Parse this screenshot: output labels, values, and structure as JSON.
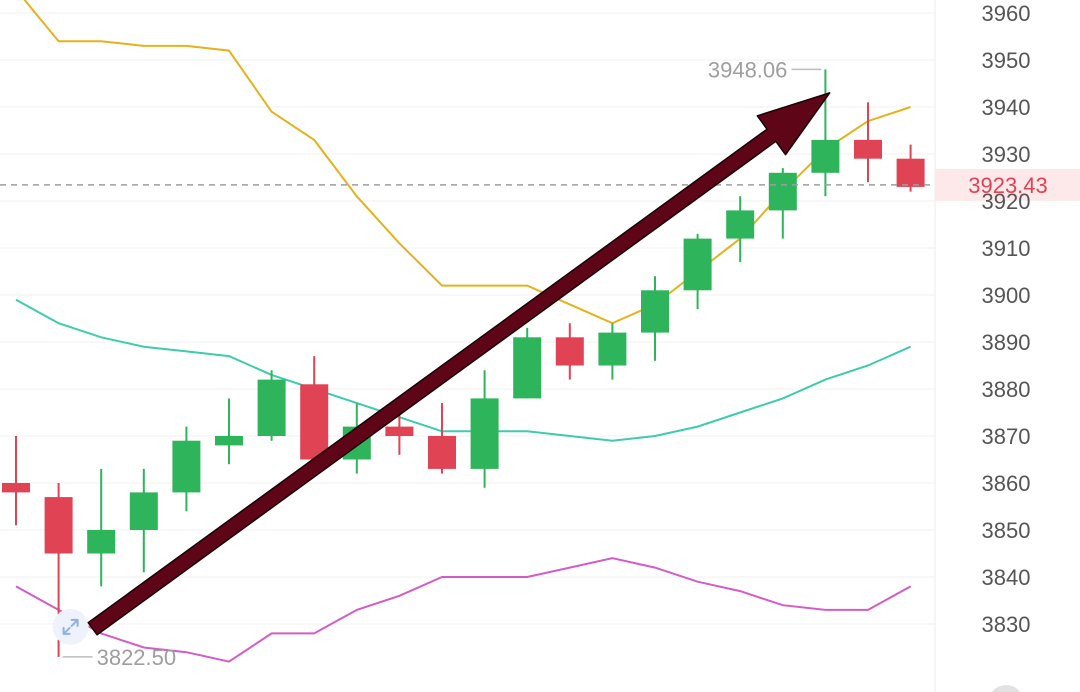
{
  "chart_data": {
    "type": "candlestick",
    "ylim": [
      3820,
      3965
    ],
    "yticks": [
      3830,
      3840,
      3850,
      3860,
      3870,
      3880,
      3890,
      3900,
      3910,
      3920,
      3930,
      3940,
      3950,
      3960
    ],
    "grid": true,
    "current_price": "3923.43",
    "high_label": "3948.06",
    "low_label": "3822.50",
    "colors": {
      "up": "#2eb45a",
      "down": "#e04354",
      "upper_band": "#e3b21d",
      "middle_band": "#3ecbae",
      "lower_band": "#d25cc8",
      "arrow": "#5e0618"
    },
    "candles": [
      {
        "open": 3860,
        "high": 3870,
        "low": 3851,
        "close": 3858
      },
      {
        "open": 3857,
        "high": 3860,
        "low": 3823,
        "close": 3845
      },
      {
        "open": 3845,
        "high": 3863,
        "low": 3838,
        "close": 3850
      },
      {
        "open": 3850,
        "high": 3863,
        "low": 3841,
        "close": 3858
      },
      {
        "open": 3858,
        "high": 3872,
        "low": 3854,
        "close": 3869
      },
      {
        "open": 3868,
        "high": 3878,
        "low": 3864,
        "close": 3870
      },
      {
        "open": 3870,
        "high": 3884,
        "low": 3869,
        "close": 3882
      },
      {
        "open": 3881,
        "high": 3887,
        "low": 3865,
        "close": 3865
      },
      {
        "open": 3865,
        "high": 3877,
        "low": 3862,
        "close": 3872
      },
      {
        "open": 3872,
        "high": 3875,
        "low": 3866,
        "close": 3870
      },
      {
        "open": 3870,
        "high": 3877,
        "low": 3862,
        "close": 3863
      },
      {
        "open": 3863,
        "high": 3884,
        "low": 3859,
        "close": 3878
      },
      {
        "open": 3878,
        "high": 3893,
        "low": 3878,
        "close": 3891
      },
      {
        "open": 3891,
        "high": 3894,
        "low": 3882,
        "close": 3885
      },
      {
        "open": 3885,
        "high": 3894,
        "low": 3882,
        "close": 3892
      },
      {
        "open": 3892,
        "high": 3904,
        "low": 3886,
        "close": 3901
      },
      {
        "open": 3901,
        "high": 3913,
        "low": 3897,
        "close": 3912
      },
      {
        "open": 3912,
        "high": 3921,
        "low": 3907,
        "close": 3918
      },
      {
        "open": 3918,
        "high": 3927,
        "low": 3912,
        "close": 3926
      },
      {
        "open": 3926,
        "high": 3948,
        "low": 3921,
        "close": 3933
      },
      {
        "open": 3933,
        "high": 3941,
        "low": 3924,
        "close": 3929
      },
      {
        "open": 3929,
        "high": 3932,
        "low": 3922,
        "close": 3923
      }
    ],
    "upper_band": [
      3965,
      3954,
      3954,
      3953,
      3953,
      3952,
      3939,
      3933,
      3921,
      3911,
      3902,
      3902,
      3902,
      3898,
      3894,
      3898,
      3905,
      3912,
      3922,
      3931,
      3937,
      3940
    ],
    "middle_band": [
      3899,
      3894,
      3891,
      3889,
      3888,
      3887,
      3883,
      3880,
      3877,
      3874,
      3871,
      3871,
      3871,
      3870,
      3869,
      3870,
      3872,
      3875,
      3878,
      3882,
      3885,
      3889
    ],
    "lower_band": [
      3838,
      3833,
      3828,
      3825,
      3824,
      3822,
      3828,
      3828,
      3833,
      3836,
      3840,
      3840,
      3840,
      3842,
      3844,
      3842,
      3839,
      3837,
      3834,
      3833,
      3833,
      3838
    ],
    "arrow": {
      "from": {
        "index": 1.8,
        "value": 3829
      },
      "to": {
        "index": 19.1,
        "value": 3943
      }
    }
  }
}
